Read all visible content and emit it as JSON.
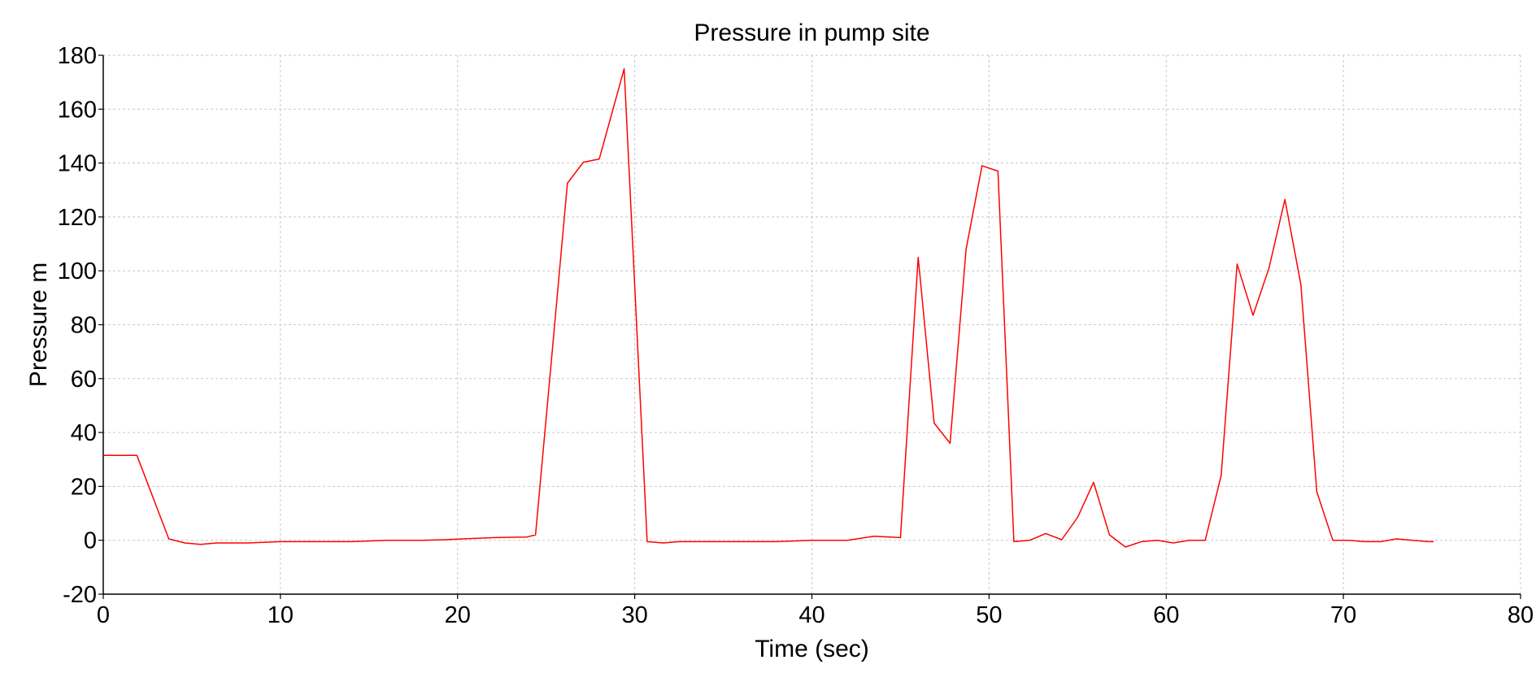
{
  "chart_data": {
    "type": "line",
    "title": "Pressure in pump site",
    "xlabel": "Time (sec)",
    "ylabel": "Pressure m",
    "xlim": [
      0,
      80
    ],
    "ylim": [
      -20,
      180
    ],
    "xticks": [
      0,
      10,
      20,
      30,
      40,
      50,
      60,
      70,
      80
    ],
    "yticks": [
      -20,
      0,
      20,
      40,
      60,
      80,
      100,
      120,
      140,
      160,
      180
    ],
    "grid": true,
    "line_color": "#ff0000",
    "series": [
      {
        "x": [
          0,
          1.9,
          3.7,
          4.6,
          5.5,
          6.4,
          8.2,
          10,
          12,
          14,
          16,
          18,
          19.3,
          20.3,
          22.1,
          23.9,
          24.4,
          25.3,
          26.2,
          27.1,
          28,
          29.4,
          30.7,
          31.6,
          32.5,
          34,
          36,
          38,
          40,
          42,
          43.5,
          45,
          46,
          46.9,
          47.8,
          48.7,
          49.6,
          50.5,
          51.4,
          52.3,
          53.2,
          54.1,
          55,
          55.9,
          56.8,
          57.7,
          58.6,
          59.5,
          60.4,
          61.3,
          62.2,
          63.1,
          64,
          64.9,
          65.8,
          66.7,
          67.6,
          68.5,
          69.4,
          70.3,
          71.2,
          72.1,
          73,
          73.9,
          74.8,
          75.1
        ],
        "y": [
          31.5,
          31.5,
          0.5,
          -1,
          -1.5,
          -1,
          -1,
          -0.5,
          -0.5,
          -0.5,
          0,
          0,
          0.2,
          0.5,
          1,
          1.2,
          2,
          67,
          132.5,
          140.3,
          141.5,
          175,
          -0.5,
          -1,
          -0.5,
          -0.5,
          -0.5,
          -0.5,
          0,
          0,
          1.5,
          1,
          105,
          43.5,
          36,
          108,
          139,
          137,
          -0.5,
          0,
          2.5,
          0.2,
          8.5,
          21.5,
          2,
          -2.5,
          -0.5,
          0,
          -1,
          0,
          0,
          24,
          102.5,
          83.5,
          101,
          126.5,
          95,
          18,
          0,
          0,
          -0.5,
          -0.5,
          0.5,
          0,
          -0.5,
          -0.5
        ]
      }
    ]
  }
}
